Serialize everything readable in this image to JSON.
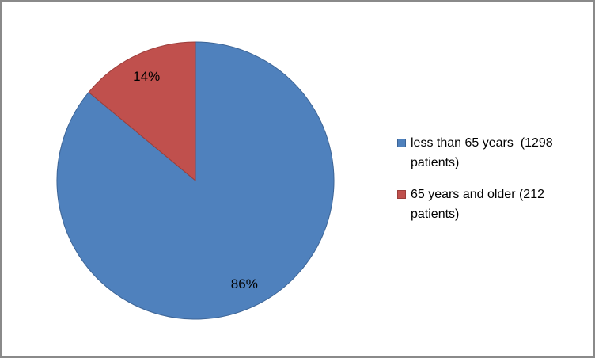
{
  "chart_data": {
    "type": "pie",
    "title": "",
    "slices": [
      {
        "label": "less than 65 years  (1298 patients)",
        "value": 86,
        "percent_label": "86%",
        "patients": 1298,
        "color": "#4F81BD",
        "border_color": "#3C6496"
      },
      {
        "label": "65 years and older (212 patients)",
        "value": 14,
        "percent_label": "14%",
        "patients": 212,
        "color": "#C0504D",
        "border_color": "#9C3E3B"
      }
    ],
    "start_angle_deg": 0,
    "direction": "clockwise",
    "legend_position": "right",
    "data_labels": "percent-inside"
  },
  "legend": {
    "items": [
      {
        "label": "less than 65 years  (1298 patients)",
        "color": "#4F81BD",
        "border_color": "#3C6496"
      },
      {
        "label": "65 years and older (212 patients)",
        "color": "#C0504D",
        "border_color": "#9C3E3B"
      }
    ]
  },
  "colors": {
    "slice_blue": "#4F81BD",
    "slice_red": "#C0504D",
    "frame_border": "#8A8A8A",
    "background": "#FFFFFF",
    "label_text": "#000000"
  }
}
